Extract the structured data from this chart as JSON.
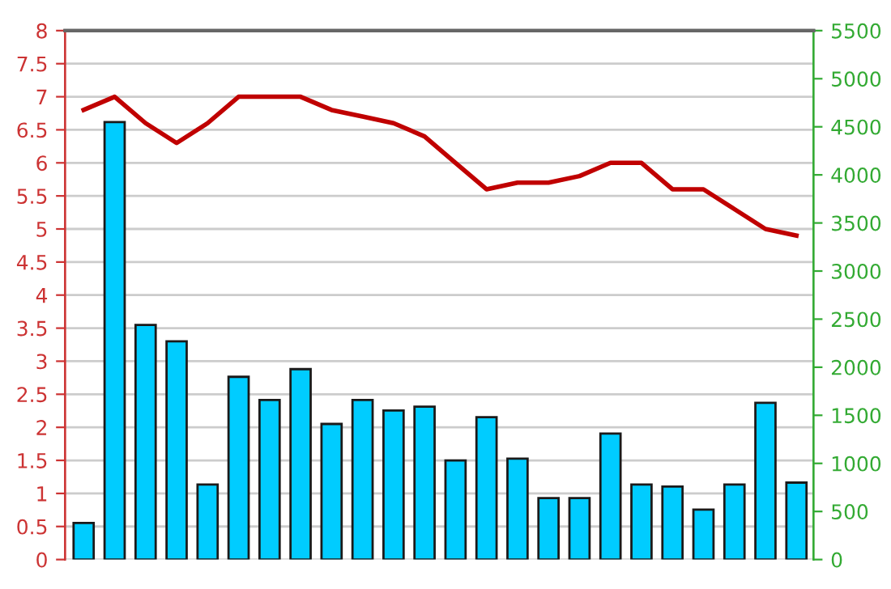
{
  "chart_data": {
    "type": "bar",
    "categories": [
      null,
      null,
      null,
      null,
      null,
      null,
      null,
      null,
      null,
      null,
      null,
      null,
      null,
      null,
      null,
      null,
      null,
      null,
      null,
      null,
      null,
      null,
      null,
      null
    ],
    "series": [
      {
        "axis": "y2",
        "color": "#00ccff",
        "values": [
          380,
          4550,
          2440,
          2270,
          780,
          1900,
          1660,
          1980,
          1410,
          1660,
          1550,
          1590,
          1030,
          1480,
          1050,
          640,
          640,
          1310,
          780,
          760,
          520,
          780,
          1630,
          800
        ]
      },
      {
        "type": "line",
        "axis": "y",
        "color": "#c00000",
        "values": [
          6.8,
          7.0,
          6.6,
          6.3,
          6.6,
          7.0,
          7.0,
          7.0,
          6.8,
          6.7,
          6.6,
          6.4,
          6.0,
          5.6,
          5.7,
          5.7,
          5.8,
          6.0,
          6.0,
          5.6,
          5.6,
          5.3,
          5.0,
          4.9
        ]
      }
    ],
    "ylim": [
      0,
      8
    ],
    "yticks": [
      0,
      0.5,
      1,
      1.5,
      2,
      2.5,
      3,
      3.5,
      4,
      4.5,
      5,
      5.5,
      6,
      6.5,
      7,
      7.5,
      8
    ],
    "y2lim": [
      0,
      5500
    ],
    "y2ticks": [
      0,
      500,
      1000,
      1500,
      2000,
      2500,
      3000,
      3500,
      4000,
      4500,
      5000,
      5500
    ],
    "grid": "y",
    "marker": "none",
    "line_style": "solid",
    "legend": false
  }
}
